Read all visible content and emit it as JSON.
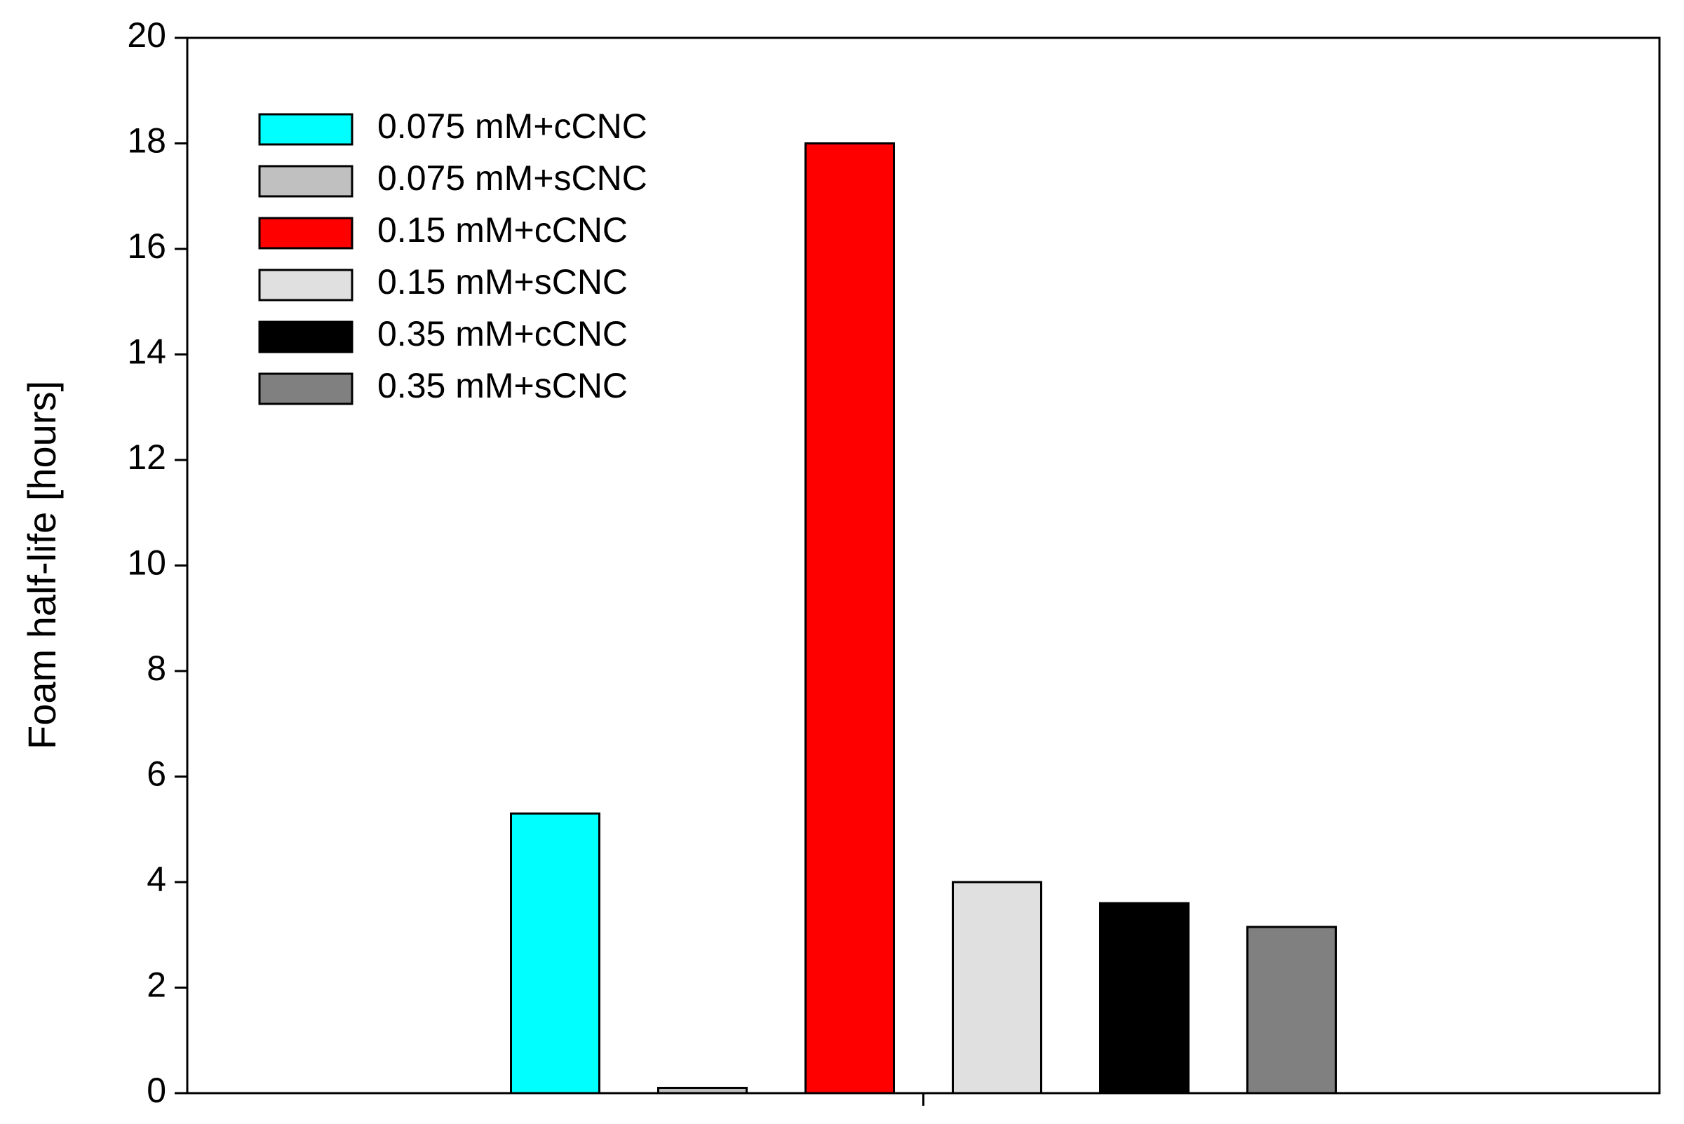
{
  "chart_data": {
    "type": "bar",
    "y_label": "Foam half-life [hours]",
    "categories": [
      null
    ],
    "series": [
      {
        "name": "0.075 mM+cCNC",
        "color": "#00ffff",
        "values": [
          5.3
        ]
      },
      {
        "name": "0.075 mM+sCNC",
        "color": "#c0c0c0",
        "values": [
          0.1
        ]
      },
      {
        "name": "0.15 mM+cCNC",
        "color": "#ff0000",
        "values": [
          18
        ]
      },
      {
        "name": "0.15 mM+sCNC",
        "color": "#e0e0e0",
        "values": [
          4
        ]
      },
      {
        "name": "0.35 mM+cCNC",
        "color": "#000000",
        "values": [
          3.6
        ]
      },
      {
        "name": "0.35 mM+sCNC",
        "color": "#808080",
        "values": [
          3.15
        ]
      }
    ],
    "ylim": [
      0,
      20
    ],
    "yticks": [
      0,
      2,
      4,
      6,
      8,
      10,
      12,
      14,
      16,
      18,
      20
    ],
    "grid": false,
    "legend": "upper left"
  }
}
